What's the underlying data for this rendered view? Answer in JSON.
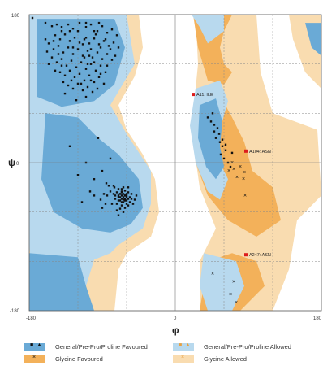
{
  "chart_data": {
    "type": "scatter",
    "xlabel": "φ",
    "ylabel": "ψ",
    "xlim": [
      -180,
      180
    ],
    "ylim": [
      -180,
      180
    ],
    "x_ticks": [
      "-180",
      "0",
      "180"
    ],
    "y_ticks": [
      "-180",
      "0",
      "180"
    ],
    "grid": true,
    "colors": {
      "general_favoured": "#6aaad6",
      "general_allowed": "#b8d9ee",
      "glycine_favoured": "#f3b15a",
      "glycine_allowed": "#f9dcb0",
      "outlier": "#dd1c1c",
      "point": "#111111"
    },
    "annotations": [
      {
        "label": "A11: ILE",
        "x": 22,
        "y": 83
      },
      {
        "label": "A104: ASN",
        "x": 87,
        "y": 14
      },
      {
        "label": "A247: ASN",
        "x": 87,
        "y": -112
      }
    ],
    "series": [
      {
        "name": "General/Pre-Pro/Proline Favoured",
        "values": [
          [
            -160,
            170
          ],
          [
            -152,
            166
          ],
          [
            -146,
            168
          ],
          [
            -140,
            165
          ],
          [
            -132,
            168
          ],
          [
            -126,
            163
          ],
          [
            -118,
            170
          ],
          [
            -110,
            165
          ],
          [
            -104,
            168
          ],
          [
            -96,
            160
          ],
          [
            -90,
            166
          ],
          [
            -84,
            158
          ],
          [
            -78,
            162
          ],
          [
            -72,
            155
          ],
          [
            -148,
            155
          ],
          [
            -142,
            150
          ],
          [
            -136,
            156
          ],
          [
            -130,
            148
          ],
          [
            -124,
            152
          ],
          [
            -118,
            146
          ],
          [
            -112,
            150
          ],
          [
            -106,
            145
          ],
          [
            -100,
            151
          ],
          [
            -94,
            144
          ],
          [
            -88,
            148
          ],
          [
            -82,
            142
          ],
          [
            -76,
            146
          ],
          [
            -70,
            140
          ],
          [
            -156,
            145
          ],
          [
            -150,
            138
          ],
          [
            -144,
            142
          ],
          [
            -138,
            134
          ],
          [
            -132,
            140
          ],
          [
            -126,
            132
          ],
          [
            -120,
            138
          ],
          [
            -114,
            130
          ],
          [
            -108,
            136
          ],
          [
            -102,
            128
          ],
          [
            -96,
            134
          ],
          [
            -90,
            126
          ],
          [
            -84,
            132
          ],
          [
            -78,
            125
          ],
          [
            -152,
            128
          ],
          [
            -146,
            122
          ],
          [
            -140,
            126
          ],
          [
            -134,
            118
          ],
          [
            -128,
            124
          ],
          [
            -122,
            116
          ],
          [
            -116,
            122
          ],
          [
            -110,
            114
          ],
          [
            -104,
            120
          ],
          [
            -98,
            112
          ],
          [
            -92,
            118
          ],
          [
            -86,
            110
          ],
          [
            -142,
            110
          ],
          [
            -136,
            106
          ],
          [
            -130,
            112
          ],
          [
            -124,
            104
          ],
          [
            -118,
            108
          ],
          [
            -112,
            100
          ],
          [
            -106,
            106
          ],
          [
            -100,
            98
          ],
          [
            -94,
            104
          ],
          [
            -88,
            96
          ],
          [
            -132,
            94
          ],
          [
            -126,
            90
          ],
          [
            -120,
            96
          ],
          [
            -114,
            88
          ],
          [
            -108,
            92
          ],
          [
            -102,
            86
          ],
          [
            -96,
            90
          ],
          [
            -138,
            98
          ],
          [
            -144,
            132
          ],
          [
            -126,
            140
          ],
          [
            -110,
            152
          ],
          [
            -98,
            156
          ],
          [
            -86,
            150
          ],
          [
            -80,
            138
          ],
          [
            -74,
            130
          ],
          [
            -120,
            160
          ],
          [
            -130,
            160
          ],
          [
            -140,
            160
          ],
          [
            -114,
            144
          ],
          [
            -104,
            138
          ],
          [
            -92,
            140
          ],
          [
            -150,
            148
          ],
          [
            -160,
            150
          ],
          [
            -158,
            135
          ],
          [
            -128,
            100
          ],
          [
            -116,
            96
          ],
          [
            -104,
            100
          ],
          [
            -92,
            108
          ],
          [
            -84,
            118
          ],
          [
            -136,
            84
          ],
          [
            -110,
            80
          ],
          [
            -122,
            76
          ],
          [
            -100,
            122
          ],
          [
            -148,
            112
          ],
          [
            -140,
            118
          ],
          [
            -156,
            120
          ],
          [
            -176,
            176
          ],
          [
            -110,
            170
          ],
          [
            -108,
            120
          ],
          [
            -112,
            128
          ],
          [
            -106,
            130
          ],
          [
            -100,
            160
          ],
          [
            -94,
            170
          ],
          [
            -80,
            5
          ],
          [
            -90,
            -10
          ],
          [
            -100,
            -20
          ],
          [
            -110,
            0
          ],
          [
            -95,
            30
          ],
          [
            -120,
            -15
          ],
          [
            -130,
            20
          ],
          [
            -85,
            -25
          ],
          [
            -105,
            -35
          ],
          [
            -115,
            -48
          ],
          [
            -75,
            -30
          ],
          [
            -70,
            -40
          ],
          [
            -66,
            -35
          ],
          [
            -64,
            -45
          ],
          [
            -62,
            -40
          ],
          [
            -60,
            -38
          ],
          [
            -58,
            -44
          ],
          [
            -66,
            -48
          ],
          [
            -68,
            -42
          ],
          [
            -72,
            -36
          ],
          [
            -64,
            -30
          ],
          [
            -60,
            -50
          ],
          [
            -56,
            -42
          ],
          [
            -62,
            -34
          ],
          [
            -70,
            -46
          ],
          [
            -74,
            -44
          ],
          [
            -58,
            -36
          ],
          [
            -66,
            -40
          ],
          [
            -62,
            -46
          ],
          [
            -68,
            -38
          ],
          [
            -60,
            -42
          ],
          [
            -64,
            -38
          ],
          [
            -70,
            -32
          ],
          [
            -76,
            -38
          ],
          [
            -54,
            -44
          ],
          [
            -66,
            -52
          ],
          [
            -62,
            -55
          ],
          [
            -72,
            -50
          ],
          [
            -58,
            -52
          ],
          [
            -66,
            -44
          ],
          [
            -60,
            -46
          ],
          [
            -64,
            -42
          ],
          [
            -68,
            -46
          ],
          [
            -62,
            -40
          ],
          [
            -66,
            -36
          ],
          [
            -70,
            -42
          ],
          [
            -60,
            -40
          ],
          [
            -64,
            -48
          ],
          [
            -74,
            -40
          ],
          [
            -62,
            -44
          ],
          [
            -80,
            -35
          ],
          [
            -84,
            -40
          ],
          [
            -78,
            -50
          ],
          [
            -88,
            -38
          ],
          [
            -92,
            -45
          ],
          [
            -86,
            -50
          ],
          [
            -82,
            -28
          ],
          [
            -100,
            -40
          ],
          [
            -90,
            -55
          ],
          [
            -68,
            -56
          ],
          [
            -56,
            -48
          ],
          [
            -54,
            -38
          ],
          [
            -58,
            -30
          ],
          [
            -76,
            -28
          ],
          [
            -72,
            -58
          ],
          [
            -64,
            -60
          ],
          [
            -50,
            -45
          ],
          [
            -48,
            -40
          ],
          [
            -52,
            -50
          ],
          [
            -66,
            -32
          ],
          [
            -70,
            -64
          ],
          [
            40,
            55
          ],
          [
            44,
            50
          ],
          [
            48,
            46
          ],
          [
            52,
            42
          ],
          [
            50,
            30
          ],
          [
            55,
            25
          ],
          [
            58,
            20
          ],
          [
            62,
            15
          ],
          [
            60,
            5
          ],
          [
            65,
            0
          ],
          [
            68,
            -5
          ],
          [
            70,
            12
          ],
          [
            46,
            60
          ],
          [
            54,
            35
          ],
          [
            58,
            28
          ],
          [
            62,
            22
          ],
          [
            56,
            10
          ],
          [
            48,
            38
          ]
        ]
      },
      {
        "name": "Glycine Favoured",
        "values": [
          [
            72,
            -8
          ],
          [
            80,
            -5
          ],
          [
            85,
            -12
          ],
          [
            70,
            0
          ],
          [
            66,
            -10
          ],
          [
            76,
            -18
          ],
          [
            86,
            -40
          ],
          [
            84,
            -20
          ],
          [
            72,
            -145
          ],
          [
            68,
            -160
          ],
          [
            46,
            -135
          ],
          [
            75,
            -170
          ]
        ]
      },
      {
        "name": "Outliers",
        "values": [
          [
            22,
            83
          ],
          [
            87,
            14
          ],
          [
            87,
            -112
          ]
        ]
      }
    ]
  },
  "legend": {
    "items": [
      {
        "label": "General/Pre-Pro/Proline Favoured"
      },
      {
        "label": "General/Pre-Pro/Proline Allowed"
      },
      {
        "label": "Glycine Favoured"
      },
      {
        "label": "Glycine Allowed"
      }
    ]
  }
}
